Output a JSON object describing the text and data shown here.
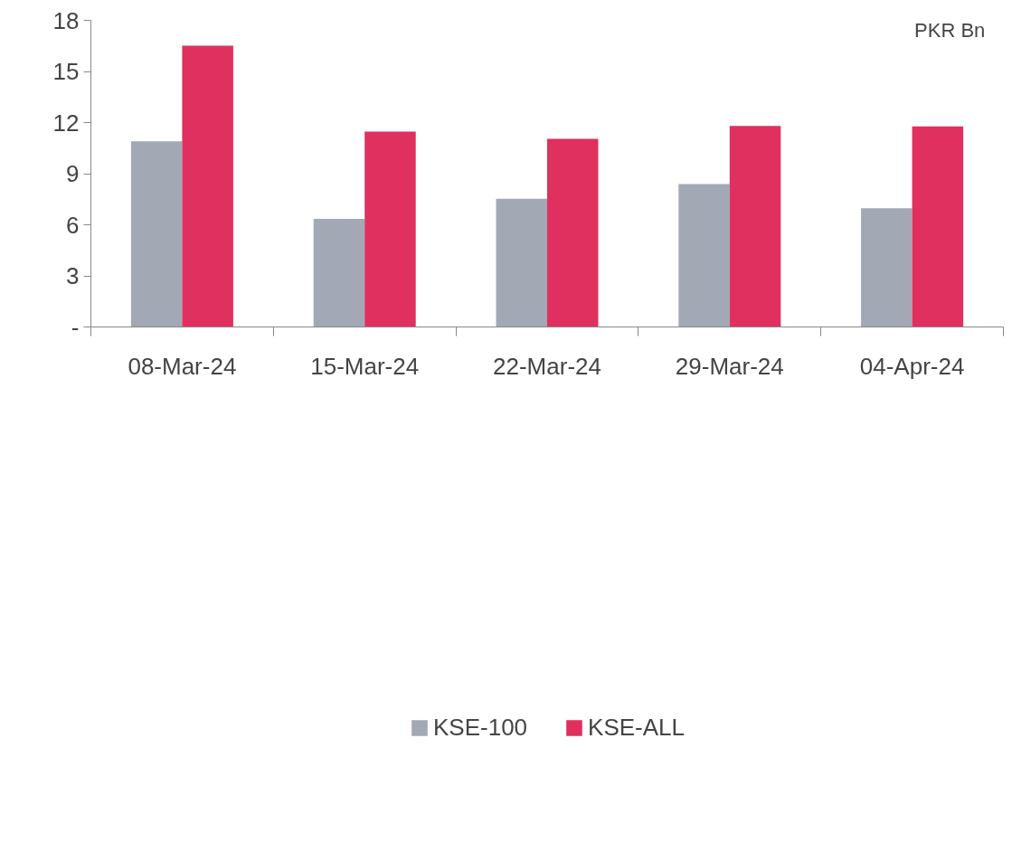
{
  "chart_data": {
    "type": "bar",
    "categories": [
      "08-Mar-24",
      "15-Mar-24",
      "22-Mar-24",
      "29-Mar-24",
      "04-Apr-24"
    ],
    "series": [
      {
        "name": "KSE-100",
        "color": "#a2a8b4",
        "values": [
          10.9,
          6.35,
          7.53,
          8.39,
          6.97
        ]
      },
      {
        "name": "KSE-ALL",
        "color": "#e0305f",
        "values": [
          16.51,
          11.47,
          11.04,
          11.8,
          11.78
        ]
      }
    ],
    "ylim": [
      0,
      18
    ],
    "yticks": [
      {
        "value": 0,
        "label": "-"
      },
      3,
      6,
      9,
      12,
      15,
      18
    ],
    "annotations": [
      "PKR Bn"
    ],
    "grid": false,
    "legend": "bottom"
  }
}
